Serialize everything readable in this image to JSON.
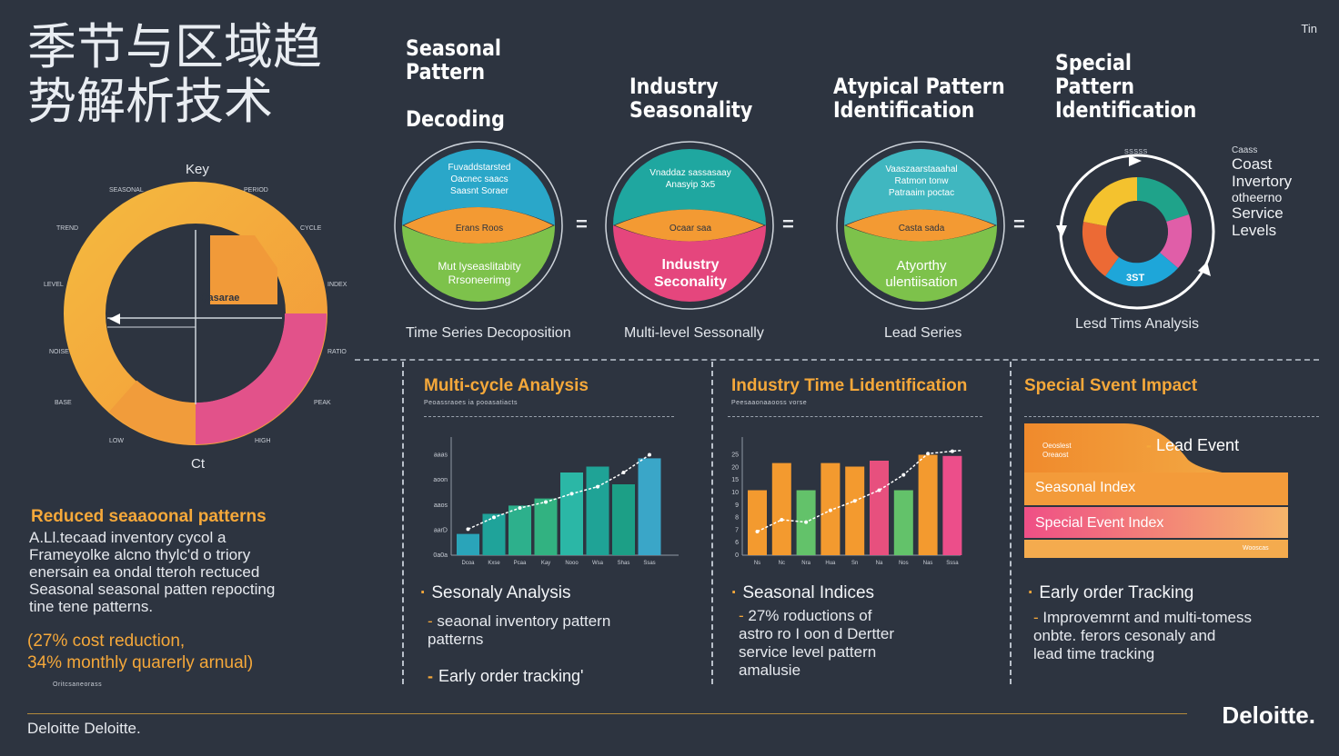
{
  "header": {
    "title": "季节与区域趋势解析技术",
    "corner_label": "Tin"
  },
  "columns": [
    {
      "heading": "Seasonal\nPattern\n\nDecoding",
      "caption": "Time Series Decoposition"
    },
    {
      "heading": "Industry\nSeasonality",
      "caption": "Multi-level Sessonally"
    },
    {
      "heading": "Atypical Pattern\nIdentification",
      "caption": "Lead Series"
    },
    {
      "heading": "Special\nPattern\nIdentification",
      "caption": "Lesd Tims Analysis"
    }
  ],
  "wheel": {
    "key_label": "Key",
    "center_label": "Ct",
    "segment_label": "Qasarae"
  },
  "circles": [
    {
      "top": "Fuvaddstarsted\nOacnec saacs\nSaasnt Soraer",
      "mid": "Erans Roos",
      "bottom": "Mut lyseaslitabity\nRrsoneerimg"
    },
    {
      "top": "Vnaddaz sassasaay\nAnasyip 3x5",
      "mid": "Ocaar saa",
      "bottom": "Industry\nSeconality"
    },
    {
      "top": "Vaaszaarstaaahal\nRatmon tonw\nPatraaim poctac",
      "mid": "Casta sada",
      "bottom": "Atyorthy\nulentiisation"
    }
  ],
  "equals": "=",
  "donut": {
    "center_label": "3ST"
  },
  "side_list": [
    "Caass",
    "Coast",
    "Invertory",
    "otheerno",
    "Service",
    "Levels"
  ],
  "left_block": {
    "heading": "Reduced seaaoonal patterns",
    "body": "A.Ll.tecaad inventory cycol a\nFrameyolke alcno thylc'd o triory\nenersain ea ondal tteroh rectuced\nSeasonal seasonal patten repocting\ntine tene patterns.",
    "stats": "(27% cost reduction,\n34% monthly quarerly arnual)",
    "small": "Oritcsaneorass"
  },
  "panels": [
    {
      "title": "Multi-cycle Analysis",
      "sub": "Peoassraoes  ia  pooasatiacts",
      "bullet1": "Sesonaly Analysis",
      "body1": "seaonal inventory pattern\npatterns",
      "bullet2": "Early order tracking'"
    },
    {
      "title": "Industry Time Lidentification",
      "sub": "Peesaaonaaooss vorse",
      "bullet1": "Seasonal Indices",
      "body1": "27% roductions of\nastro ro I oon d Dertter\nservice level pattern\namalusie",
      "bullet2": ""
    },
    {
      "title": "Special Svent Impact",
      "sub": "",
      "bullet1": "Early order Tracking",
      "body1": "Improvemrnt and multi-tomess\nonbte. ferors cesonaly and\nlead time tracking",
      "bullet2": ""
    }
  ],
  "area_chart": {
    "label_lead": "Lead Event",
    "label_seasonal": "Seasonal Index",
    "label_special": "Special Event Index",
    "corner_small": "Oeoslest\nOreaost",
    "bottom_small": "Wooscas"
  },
  "chart_data": [
    {
      "type": "bar",
      "categories": [
        "Dcoa",
        "Kxse",
        "Pcaa",
        "Kay",
        "Nooo",
        "Wsa",
        "Shas",
        "Ssas"
      ],
      "values": [
        18,
        35,
        42,
        48,
        70,
        75,
        60,
        82
      ],
      "line_values": [
        22,
        32,
        40,
        45,
        52,
        58,
        70,
        85
      ],
      "y_ticks": [
        "0a0a",
        "aarD",
        "aaos",
        "aoon",
        "aaas"
      ],
      "ylim": [
        0,
        100
      ],
      "colors": [
        "#2aa4b9",
        "#1fa39a",
        "#2db08c",
        "#32b281",
        "#2bb7a6",
        "#1fa396",
        "#1c9f86",
        "#3aa6c8"
      ]
    },
    {
      "type": "bar",
      "categories": [
        "Ns",
        "Nc",
        "Nra",
        "Hua",
        "Sn",
        "Na",
        "Nos",
        "Nas",
        "Sssa",
        "Nra"
      ],
      "values": [
        55,
        78,
        55,
        78,
        75,
        80,
        55,
        85,
        84,
        80
      ],
      "line_values": [
        20,
        30,
        28,
        38,
        46,
        55,
        68,
        86,
        88,
        90
      ],
      "y_ticks": [
        "0",
        "6",
        "7",
        "8",
        "9",
        "10",
        "15",
        "20",
        "25"
      ],
      "ylim": [
        0,
        100
      ],
      "colors": [
        "#f39a2f",
        "#f39a2f",
        "#63c26a",
        "#f39a2f",
        "#f39a2f",
        "#e7507e",
        "#63c26a",
        "#f39a2f",
        "#ec4e8a",
        "#ec4e8a"
      ]
    }
  ],
  "footer": {
    "left": "Deloitte Deloitte.",
    "brand": "Deloitte."
  }
}
